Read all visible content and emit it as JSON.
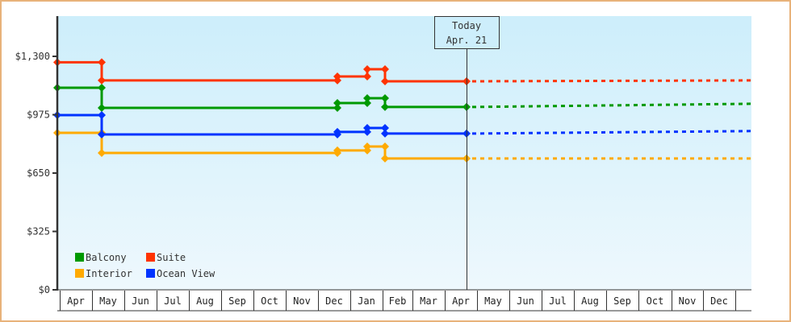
{
  "chart_data": {
    "type": "line",
    "title": "",
    "xlabel": "",
    "ylabel": "",
    "ylim": [
      0,
      1300
    ],
    "yticks": [
      "$0",
      "$325",
      "$650",
      "$975",
      "$1,300"
    ],
    "ytick_values": [
      0,
      325,
      650,
      975,
      1300
    ],
    "x_months": [
      "Apr",
      "May",
      "Jun",
      "Jul",
      "Aug",
      "Sep",
      "Oct",
      "Nov",
      "Dec",
      "Jan",
      "Feb",
      "Mar",
      "Apr",
      "May",
      "Jun",
      "Jul",
      "Aug",
      "Sep",
      "Oct",
      "Nov",
      "Dec"
    ],
    "today_marker": {
      "line1": "Today",
      "line2": "Apr. 21"
    },
    "legend_position": "lower-left",
    "grid": false,
    "step": true,
    "series": [
      {
        "name": "Balcony",
        "color": "#009900",
        "history": [
          [
            "Apr start",
            1125
          ],
          [
            "May",
            1125
          ],
          [
            "May",
            1013
          ],
          [
            "Dec",
            1013
          ],
          [
            "Dec",
            1040
          ],
          [
            "Jan",
            1040
          ],
          [
            "Jan",
            1067
          ],
          [
            "Feb",
            1067
          ],
          [
            "Feb",
            1018
          ],
          [
            "Apr (today)",
            1018
          ]
        ],
        "forecast": [
          [
            "Apr",
            1018
          ],
          [
            "Dec+",
            1036
          ]
        ]
      },
      {
        "name": "Suite",
        "color": "#ff3300",
        "history": [
          [
            "Apr start",
            1267
          ],
          [
            "May",
            1267
          ],
          [
            "May",
            1166
          ],
          [
            "Dec",
            1166
          ],
          [
            "Dec",
            1188
          ],
          [
            "Jan",
            1188
          ],
          [
            "Jan",
            1228
          ],
          [
            "Feb",
            1228
          ],
          [
            "Feb",
            1161
          ],
          [
            "Apr (today)",
            1161
          ]
        ],
        "forecast": [
          [
            "Apr",
            1161
          ],
          [
            "Dec+",
            1166
          ]
        ]
      },
      {
        "name": "Interior",
        "color": "#ffaa00",
        "history": [
          [
            "Apr start",
            874
          ],
          [
            "May",
            874
          ],
          [
            "May",
            762
          ],
          [
            "Dec",
            762
          ],
          [
            "Dec",
            776
          ],
          [
            "Jan",
            776
          ],
          [
            "Jan",
            798
          ],
          [
            "Feb",
            798
          ],
          [
            "Feb",
            731
          ],
          [
            "Apr (today)",
            731
          ]
        ],
        "forecast": [
          [
            "Apr",
            731
          ],
          [
            "Dec+",
            731
          ]
        ]
      },
      {
        "name": "Ocean View",
        "color": "#0033ff",
        "history": [
          [
            "Apr start",
            973
          ],
          [
            "May",
            973
          ],
          [
            "May",
            865
          ],
          [
            "Dec",
            865
          ],
          [
            "Dec",
            879
          ],
          [
            "Jan",
            879
          ],
          [
            "Jan",
            901
          ],
          [
            "Feb",
            901
          ],
          [
            "Feb",
            870
          ],
          [
            "Apr (today)",
            870
          ]
        ],
        "forecast": [
          [
            "Apr",
            870
          ],
          [
            "Dec+",
            884
          ]
        ]
      }
    ]
  },
  "legend": [
    {
      "label": "Balcony",
      "color": "#009900"
    },
    {
      "label": "Suite",
      "color": "#ff3300"
    },
    {
      "label": "Interior",
      "color": "#ffaa00"
    },
    {
      "label": "Ocean View",
      "color": "#0033ff"
    }
  ]
}
